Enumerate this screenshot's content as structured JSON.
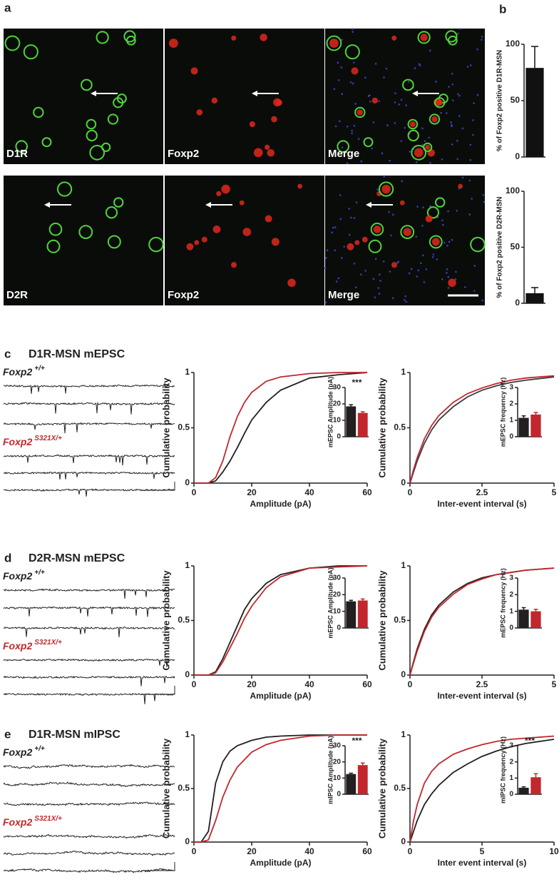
{
  "panel_labels": [
    "a",
    "b"
  ],
  "micrographs": [
    [
      "D1R",
      "Foxp2",
      "Merge"
    ],
    [
      "D2R",
      "Foxp2",
      "Merge"
    ]
  ],
  "recordings": [
    {
      "label": "c",
      "title": "D1R-MSN mEPSC",
      "groups": [
        {
          "gene": "Foxp2",
          "allele": "+/+"
        },
        {
          "gene": "Foxp2",
          "allele": "S321X/+"
        }
      ]
    },
    {
      "label": "d",
      "title": "D2R-MSN mEPSC",
      "groups": [
        {
          "gene": "Foxp2",
          "allele": "+/+"
        },
        {
          "gene": "Foxp2",
          "allele": "S321X/+"
        }
      ]
    },
    {
      "label": "e",
      "title": "D1R-MSN mIPSC",
      "groups": [
        {
          "gene": "Foxp2",
          "allele": "+/+"
        },
        {
          "gene": "Foxp2",
          "allele": "S321X/+"
        }
      ]
    }
  ],
  "chart_data": [
    {
      "type": "bar",
      "ylabel": "% of Foxp2 positive D1R-MSN",
      "categories": [
        null
      ],
      "values": [
        79
      ],
      "errors": [
        19
      ],
      "colors": [
        "#111111"
      ],
      "ylim": [
        0,
        100
      ],
      "yticks": [
        0,
        50,
        100
      ]
    },
    {
      "type": "bar",
      "ylabel": "% of Foxp2 positive D2R-MSN",
      "categories": [
        null
      ],
      "values": [
        9
      ],
      "errors": [
        5
      ],
      "colors": [
        "#111111"
      ],
      "ylim": [
        0,
        100
      ],
      "yticks": [
        0,
        50,
        100
      ]
    },
    {
      "type": "line",
      "xlabel": "Amplitude (pA)",
      "ylabel": "Cumulative probability",
      "x": [
        0,
        5,
        7.5,
        10,
        12.5,
        15,
        17.5,
        20,
        25,
        30,
        40,
        50,
        60
      ],
      "series": [
        {
          "color": "#231f20",
          "values": [
            0,
            0,
            0.02,
            0.1,
            0.2,
            0.32,
            0.45,
            0.57,
            0.73,
            0.84,
            0.95,
            0.98,
            1
          ]
        },
        {
          "color": "#c1272d",
          "values": [
            0,
            0,
            0.05,
            0.2,
            0.42,
            0.6,
            0.73,
            0.82,
            0.92,
            0.96,
            0.99,
            1,
            1
          ]
        }
      ],
      "xlim": [
        0,
        60
      ],
      "xticks": [
        0,
        20,
        40,
        60
      ],
      "ylim": [
        0,
        1
      ],
      "yticks": [
        0,
        0.5,
        1
      ]
    },
    {
      "type": "bar",
      "ylabel": "mEPSC Amplitude (pA)",
      "annotation": "***",
      "categories": [
        null,
        null
      ],
      "values": [
        18.5,
        14.5
      ],
      "errors": [
        1,
        0.7
      ],
      "colors": [
        "#231f20",
        "#c1272d"
      ],
      "ylim": [
        0,
        30
      ],
      "yticks": [
        0,
        10,
        20,
        30
      ]
    },
    {
      "type": "line",
      "xlabel": "Inter-event interval (s)",
      "ylabel": "Cumulative probability",
      "x": [
        0,
        0.1,
        0.25,
        0.5,
        0.75,
        1,
        1.5,
        2,
        2.5,
        3,
        3.5,
        4,
        5
      ],
      "series": [
        {
          "color": "#3a3a40",
          "values": [
            0,
            0.08,
            0.2,
            0.36,
            0.48,
            0.57,
            0.69,
            0.78,
            0.84,
            0.88,
            0.91,
            0.93,
            0.96
          ]
        },
        {
          "color": "#c1272d",
          "values": [
            0,
            0.1,
            0.23,
            0.4,
            0.52,
            0.61,
            0.73,
            0.81,
            0.86,
            0.9,
            0.93,
            0.95,
            0.97
          ]
        }
      ],
      "xlim": [
        0,
        5
      ],
      "xticks": [
        0,
        2.5,
        5
      ],
      "ylim": [
        0,
        1
      ],
      "yticks": [
        0,
        0.5,
        1
      ]
    },
    {
      "type": "bar",
      "ylabel": "mEPSC frequency (Hz)",
      "categories": [
        null,
        null
      ],
      "values": [
        1.15,
        1.35
      ],
      "errors": [
        0.12,
        0.13
      ],
      "colors": [
        "#231f20",
        "#c1272d"
      ],
      "ylim": [
        0,
        3
      ],
      "yticks": [
        0,
        1,
        2,
        3
      ]
    },
    {
      "type": "line",
      "xlabel": "Amplitude (pA)",
      "ylabel": "Cumulative probability",
      "x": [
        0,
        5,
        7.5,
        10,
        12.5,
        15,
        17.5,
        20,
        25,
        30,
        40,
        50,
        60
      ],
      "series": [
        {
          "color": "#231f20",
          "values": [
            0,
            0,
            0.03,
            0.15,
            0.3,
            0.45,
            0.6,
            0.7,
            0.84,
            0.92,
            0.98,
            1,
            1
          ]
        },
        {
          "color": "#c1272d",
          "values": [
            0,
            0,
            0.02,
            0.12,
            0.25,
            0.38,
            0.52,
            0.63,
            0.8,
            0.9,
            0.98,
            0.99,
            1
          ]
        }
      ],
      "xlim": [
        0,
        60
      ],
      "xticks": [
        0,
        20,
        40,
        60
      ],
      "ylim": [
        0,
        1
      ],
      "yticks": [
        0,
        0.5,
        1
      ]
    },
    {
      "type": "bar",
      "ylabel": "mEPSC Amplitude (pA)",
      "categories": [
        null,
        null
      ],
      "values": [
        16,
        16.5
      ],
      "errors": [
        0.6,
        0.9
      ],
      "colors": [
        "#231f20",
        "#c1272d"
      ],
      "ylim": [
        0,
        30
      ],
      "yticks": [
        0,
        10,
        20,
        30
      ]
    },
    {
      "type": "line",
      "xlabel": "Inter-event interval (s)",
      "ylabel": "Cumulative probability",
      "x": [
        0,
        0.1,
        0.25,
        0.5,
        0.75,
        1,
        1.5,
        2,
        2.5,
        3,
        3.5,
        4,
        5
      ],
      "series": [
        {
          "color": "#231f20",
          "values": [
            0,
            0.1,
            0.24,
            0.42,
            0.55,
            0.64,
            0.76,
            0.84,
            0.89,
            0.92,
            0.94,
            0.96,
            0.98
          ]
        },
        {
          "color": "#c1272d",
          "values": [
            0,
            0.09,
            0.22,
            0.4,
            0.53,
            0.62,
            0.74,
            0.83,
            0.88,
            0.92,
            0.94,
            0.96,
            0.98
          ]
        }
      ],
      "xlim": [
        0,
        5
      ],
      "xticks": [
        0,
        2.5,
        5
      ],
      "ylim": [
        0,
        1
      ],
      "yticks": [
        0,
        0.5,
        1
      ]
    },
    {
      "type": "bar",
      "ylabel": "mEPSC frequency (Hz)",
      "categories": [
        null,
        null
      ],
      "values": [
        1.1,
        1.0
      ],
      "errors": [
        0.12,
        0.12
      ],
      "colors": [
        "#231f20",
        "#c1272d"
      ],
      "ylim": [
        0,
        3
      ],
      "yticks": [
        0,
        1,
        2,
        3
      ]
    },
    {
      "type": "line",
      "xlabel": "Amplitude (pA)",
      "ylabel": "Cumulative probability",
      "x": [
        0,
        2.5,
        5,
        7.5,
        10,
        12.5,
        15,
        20,
        25,
        30,
        40,
        50,
        60
      ],
      "series": [
        {
          "color": "#231f20",
          "values": [
            0,
            0,
            0.1,
            0.55,
            0.75,
            0.85,
            0.9,
            0.95,
            0.98,
            0.99,
            1,
            1,
            1
          ]
        },
        {
          "color": "#c1272d",
          "values": [
            0,
            0,
            0.02,
            0.2,
            0.42,
            0.58,
            0.7,
            0.84,
            0.91,
            0.95,
            0.99,
            1,
            1
          ]
        }
      ],
      "xlim": [
        0,
        60
      ],
      "xticks": [
        0,
        20,
        40,
        60
      ],
      "ylim": [
        0,
        1
      ],
      "yticks": [
        0,
        0.5,
        1
      ]
    },
    {
      "type": "bar",
      "ylabel": "mIPSC Amplitude (pA)",
      "annotation": "***",
      "categories": [
        null,
        null
      ],
      "values": [
        12.5,
        18
      ],
      "errors": [
        0.5,
        1.3
      ],
      "colors": [
        "#231f20",
        "#c1272d"
      ],
      "ylim": [
        0,
        30
      ],
      "yticks": [
        0,
        10,
        20,
        30
      ]
    },
    {
      "type": "line",
      "xlabel": "Inter event interval (s)",
      "ylabel": "Cumulative probability",
      "x": [
        0,
        0.25,
        0.5,
        1,
        1.5,
        2,
        3,
        4,
        5,
        6,
        7,
        8,
        10
      ],
      "series": [
        {
          "color": "#231f20",
          "values": [
            0,
            0.1,
            0.2,
            0.35,
            0.45,
            0.53,
            0.65,
            0.73,
            0.8,
            0.85,
            0.89,
            0.92,
            0.96
          ]
        },
        {
          "color": "#c1272d",
          "values": [
            0,
            0.2,
            0.35,
            0.55,
            0.66,
            0.73,
            0.82,
            0.87,
            0.91,
            0.94,
            0.96,
            0.97,
            0.99
          ]
        }
      ],
      "xlim": [
        0,
        10
      ],
      "xticks": [
        0,
        5,
        10
      ],
      "ylim": [
        0,
        1
      ],
      "yticks": [
        0,
        0.5,
        1
      ]
    },
    {
      "type": "bar",
      "ylabel": "mIPSC frequency (Hz)",
      "annotation": "***",
      "categories": [
        null,
        null
      ],
      "values": [
        0.4,
        1.05
      ],
      "errors": [
        0.06,
        0.22
      ],
      "colors": [
        "#231f20",
        "#c1272d"
      ],
      "ylim": [
        0,
        3
      ],
      "yticks": [
        0,
        1,
        2,
        3
      ]
    }
  ]
}
